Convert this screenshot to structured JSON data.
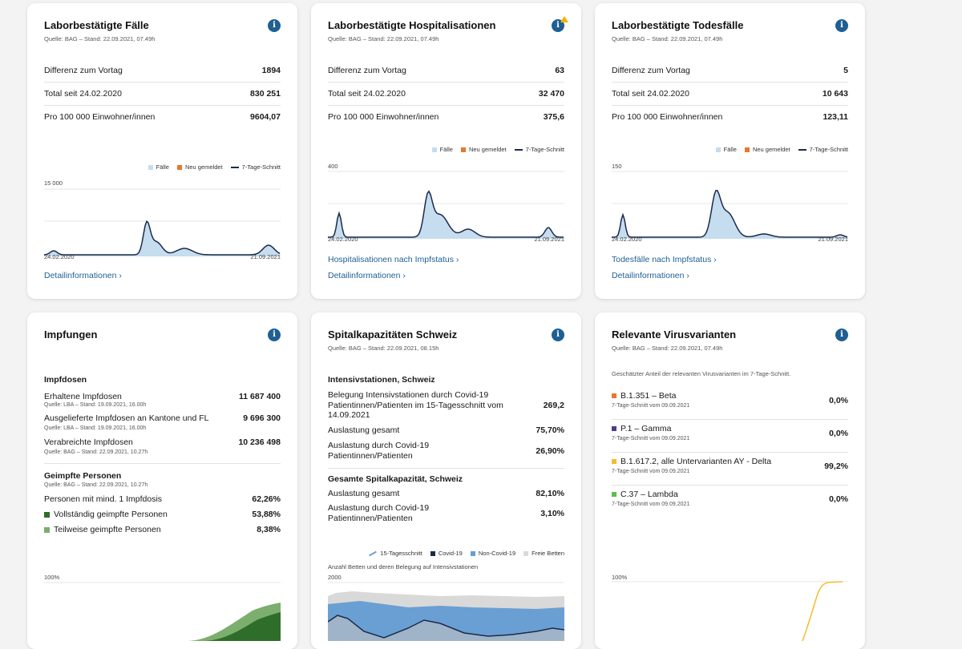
{
  "cards": {
    "faelle": {
      "title": "Laborbestätigte Fälle",
      "source": "Quelle: BAG – Stand: 22.09.2021, 07.49h",
      "rows": [
        {
          "label": "Differenz zum Vortag",
          "value": "1894"
        },
        {
          "label": "Total seit 24.02.2020",
          "value": "830 251"
        },
        {
          "label": "Pro 100 000 Einwohner/innen",
          "value": "9604,07"
        }
      ],
      "legend": [
        "Fälle",
        "Neu gemeldet",
        "7-Tage-Schnitt"
      ],
      "ymax": "15 000",
      "xstart": "24.02.2020",
      "xend": "21.09.2021",
      "link_detail": "Detailinformationen"
    },
    "hosp": {
      "title": "Laborbestätigte Hospitalisationen",
      "source": "Quelle: BAG – Stand: 22.09.2021, 07.49h",
      "rows": [
        {
          "label": "Differenz zum Vortag",
          "value": "63"
        },
        {
          "label": "Total seit 24.02.2020",
          "value": "32 470"
        },
        {
          "label": "Pro 100 000 Einwohner/innen",
          "value": "375,6"
        }
      ],
      "legend": [
        "Fälle",
        "Neu gemeldet",
        "7-Tage-Schnitt"
      ],
      "ymax": "400",
      "xstart": "24.02.2020",
      "xend": "21.09.2021",
      "link_status": "Hospitalisationen nach Impfstatus",
      "link_detail": "Detailinformationen"
    },
    "tod": {
      "title": "Laborbestätigte Todesfälle",
      "source": "Quelle: BAG – Stand: 22.09.2021, 07.49h",
      "rows": [
        {
          "label": "Differenz zum Vortag",
          "value": "5"
        },
        {
          "label": "Total seit 24.02.2020",
          "value": "10 643"
        },
        {
          "label": "Pro 100 000 Einwohner/innen",
          "value": "123,11"
        }
      ],
      "legend": [
        "Fälle",
        "Neu gemeldet",
        "7-Tage-Schnitt"
      ],
      "ymax": "150",
      "xstart": "24.02.2020",
      "xend": "21.09.2021",
      "link_status": "Todesfälle nach Impfstatus",
      "link_detail": "Detailinformationen"
    },
    "impf": {
      "title": "Impfungen",
      "doses_heading": "Impfdosen",
      "doses": [
        {
          "label": "Erhaltene Impfdosen",
          "value": "11 687 400",
          "source": "Quelle: LBA – Stand: 19.09.2021, 16.00h"
        },
        {
          "label": "Ausgelieferte Impfdosen an Kantone und FL",
          "value": "9 696 300",
          "source": "Quelle: LBA – Stand: 19.09.2021, 16.00h"
        },
        {
          "label": "Verabreichte Impfdosen",
          "value": "10 236 498",
          "source": "Quelle: BAG – Stand: 22.09.2021, 10.27h"
        }
      ],
      "persons_heading": "Geimpfte Personen",
      "persons_source": "Quelle: BAG – Stand: 22.09.2021, 10.27h",
      "persons": [
        {
          "label": "Personen mit mind. 1 Impfdosis",
          "value": "62,26%"
        },
        {
          "label": "Vollständig geimpfte Personen",
          "value": "53,88%"
        },
        {
          "label": "Teilweise geimpfte Personen",
          "value": "8,38%"
        }
      ],
      "ymax": "100%"
    },
    "spital": {
      "title": "Spitalkapazitäten Schweiz",
      "source": "Quelle: BAG – Stand: 22.09.2021, 08.15h",
      "ic_heading": "Intensivstationen, Schweiz",
      "ic_rows": [
        {
          "label": "Belegung Intensivstationen durch Covid-19 Patientinnen/Patienten im 15-Tagesschnitt vom 14.09.2021",
          "value": "269,2"
        },
        {
          "label": "Auslastung gesamt",
          "value": "75,70%"
        },
        {
          "label": "Auslastung durch Covid-19 Patientinnen/Patienten",
          "value": "26,90%"
        }
      ],
      "total_heading": "Gesamte Spitalkapazität, Schweiz",
      "total_rows": [
        {
          "label": "Auslastung gesamt",
          "value": "82,10%"
        },
        {
          "label": "Auslastung durch Covid-19 Patientinnen/Patienten",
          "value": "3,10%"
        }
      ],
      "legend": [
        "15-Tagesschnitt",
        "Covid-19",
        "Non-Covid-19",
        "Freie Betten"
      ],
      "chart_caption": "Anzahl Betten und deren Belegung auf Intensivstationen",
      "ymax": "2000"
    },
    "virus": {
      "title": "Relevante Virusvarianten",
      "source": "Quelle: BAG – Stand: 22.09.2021, 07.49h",
      "intro": "Geschätzter Anteil der relevanten Virusvarianten im 7-Tage-Schnitt.",
      "variants": [
        {
          "name": "B.1.351 – Beta",
          "date": "7-Tage-Schnitt vom 09.09.2021",
          "value": "0,0%",
          "color": "#e8772e"
        },
        {
          "name": "P.1 – Gamma",
          "date": "7-Tage-Schnitt vom 09.09.2021",
          "value": "0,0%",
          "color": "#4b3c8e"
        },
        {
          "name": "B.1.617.2, alle Untervarianten AY - Delta",
          "date": "7-Tage-Schnitt vom 09.09.2021",
          "value": "99,2%",
          "color": "#f2bd2e"
        },
        {
          "name": "C.37 – Lambda",
          "date": "7-Tage-Schnitt vom 09.09.2021",
          "value": "0,0%",
          "color": "#5cbf4a"
        }
      ],
      "ymax": "100%"
    }
  },
  "colors": {
    "bar_light": "#c6dcef",
    "new_reported": "#e8772e",
    "avg_line": "#1b2b4a",
    "accent": "#1f5f92",
    "vacc_full": "#2e6e2a",
    "vacc_partial": "#7cae6e",
    "covid": "#1b2b4a",
    "noncovid": "#6a9fd4",
    "free_beds": "#d9d9d9"
  }
}
